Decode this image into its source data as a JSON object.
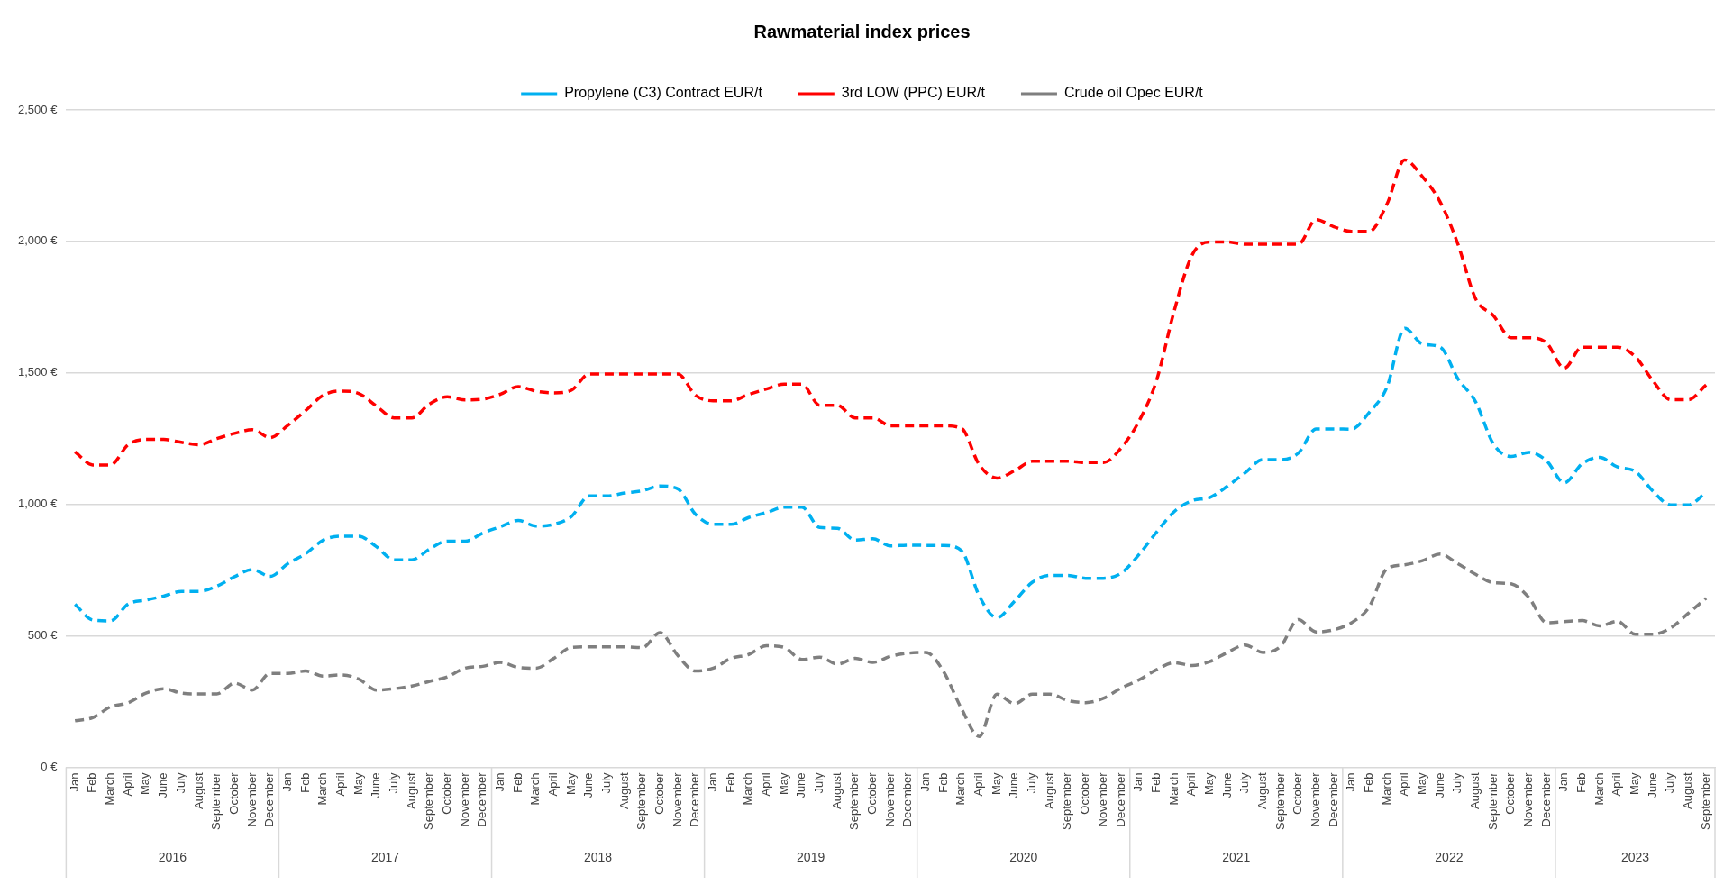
{
  "chart_data": {
    "type": "line",
    "title": "Rawmaterial index prices",
    "categories": [
      "Jan",
      "Feb",
      "March",
      "April",
      "May",
      "June",
      "July",
      "August",
      "September",
      "October",
      "November",
      "December",
      "Jan",
      "Feb",
      "March",
      "April",
      "May",
      "June",
      "July",
      "August",
      "September",
      "October",
      "November",
      "December",
      "Jan",
      "Feb",
      "March",
      "April",
      "May",
      "June",
      "July",
      "August",
      "September",
      "October",
      "November",
      "December",
      "Jan",
      "Feb",
      "March",
      "April",
      "May",
      "June",
      "July",
      "August",
      "September",
      "October",
      "November",
      "December",
      "Jan",
      "Feb",
      "March",
      "April",
      "May",
      "June",
      "July",
      "August",
      "September",
      "October",
      "November",
      "December",
      "Jan",
      "Feb",
      "March",
      "April",
      "May",
      "June",
      "July",
      "August",
      "September",
      "October",
      "November",
      "December",
      "Jan",
      "Feb",
      "March",
      "April",
      "May",
      "June",
      "July",
      "August",
      "September",
      "October",
      "November",
      "December",
      "Jan",
      "Feb",
      "March",
      "April",
      "May",
      "June",
      "July",
      "August",
      "September"
    ],
    "series": [
      {
        "name": "Propylene (C3) Contract EUR/t",
        "color": "#00b0f0",
        "values": [
          620,
          560,
          557,
          621,
          636,
          651,
          669,
          669,
          689,
          725,
          752,
          726,
          774,
          812,
          864,
          879,
          879,
          839,
          789,
          789,
          830,
          860,
          860,
          891,
          915,
          939,
          917,
          924,
          954,
          1032,
          1032,
          1043,
          1052,
          1070,
          1059,
          962,
          924,
          924,
          950,
          969,
          989,
          989,
          912,
          909,
          864,
          869,
          842,
          845,
          844,
          844,
          824,
          652,
          569,
          632,
          704,
          730,
          730,
          719,
          719,
          738,
          808,
          894,
          972,
          1014,
          1026,
          1069,
          1120,
          1170,
          1170,
          1195,
          1287,
          1287,
          1286,
          1350,
          1446,
          1670,
          1610,
          1598,
          1478,
          1390,
          1230,
          1182,
          1198,
          1166,
          1082,
          1154,
          1179,
          1142,
          1126,
          1050,
          998,
          998,
          1046
        ]
      },
      {
        "name": "3rd LOW (PPC) EUR/t",
        "color": "#ff0000",
        "values": [
          1200,
          1150,
          1150,
          1227,
          1247,
          1247,
          1236,
          1227,
          1250,
          1270,
          1284,
          1254,
          1300,
          1356,
          1415,
          1431,
          1422,
          1374,
          1329,
          1329,
          1382,
          1409,
          1397,
          1400,
          1419,
          1448,
          1430,
          1424,
          1434,
          1496,
          1496,
          1496,
          1496,
          1496,
          1496,
          1415,
          1394,
          1394,
          1418,
          1439,
          1457,
          1457,
          1377,
          1377,
          1329,
          1329,
          1299,
          1299,
          1299,
          1299,
          1289,
          1151,
          1100,
          1128,
          1164,
          1164,
          1164,
          1159,
          1159,
          1214,
          1315,
          1471,
          1736,
          1947,
          1998,
          1998,
          1989,
          1989,
          1989,
          1989,
          2083,
          2056,
          2038,
          2038,
          2142,
          2310,
          2246,
          2150,
          1990,
          1782,
          1718,
          1634,
          1634,
          1614,
          1518,
          1598,
          1598,
          1598,
          1562,
          1470,
          1398,
          1398,
          1454
        ]
      },
      {
        "name": "Crude oil Opec EUR/t",
        "color": "#7f7f7f",
        "values": [
          177,
          189,
          230,
          245,
          282,
          299,
          282,
          279,
          279,
          320,
          294,
          357,
          357,
          366,
          347,
          351,
          336,
          294,
          299,
          309,
          327,
          344,
          377,
          384,
          399,
          380,
          377,
          414,
          456,
          458,
          458,
          458,
          455,
          512,
          425,
          366,
          377,
          414,
          429,
          462,
          456,
          410,
          419,
          392,
          414,
          399,
          422,
          434,
          437,
          363,
          223,
          117,
          278,
          242,
          278,
          278,
          254,
          246,
          262,
          301,
          332,
          371,
          398,
          387,
          402,
          437,
          465,
          437,
          460,
          562,
          515,
          523,
          550,
          610,
          755,
          770,
          786,
          811,
          774,
          734,
          702,
          698,
          646,
          550,
          554,
          558,
          538,
          555,
          506,
          506,
          530,
          586,
          643
        ]
      }
    ],
    "ylim": [
      0,
      2500
    ],
    "yticks": [
      {
        "value": 0,
        "label": "0 €"
      },
      {
        "value": 500,
        "label": "500 €"
      },
      {
        "value": 1000,
        "label": "1,000 €"
      },
      {
        "value": 1500,
        "label": "1,500 €"
      },
      {
        "value": 2000,
        "label": "2,000 €"
      },
      {
        "value": 2500,
        "label": "2,500 €"
      }
    ],
    "annotations": [
      "2016",
      "2017",
      "2018",
      "2019",
      "2020",
      "2021",
      "2022",
      "2023"
    ],
    "grid": "y",
    "legend": "top",
    "marker": "none",
    "line_style": "dashed"
  }
}
